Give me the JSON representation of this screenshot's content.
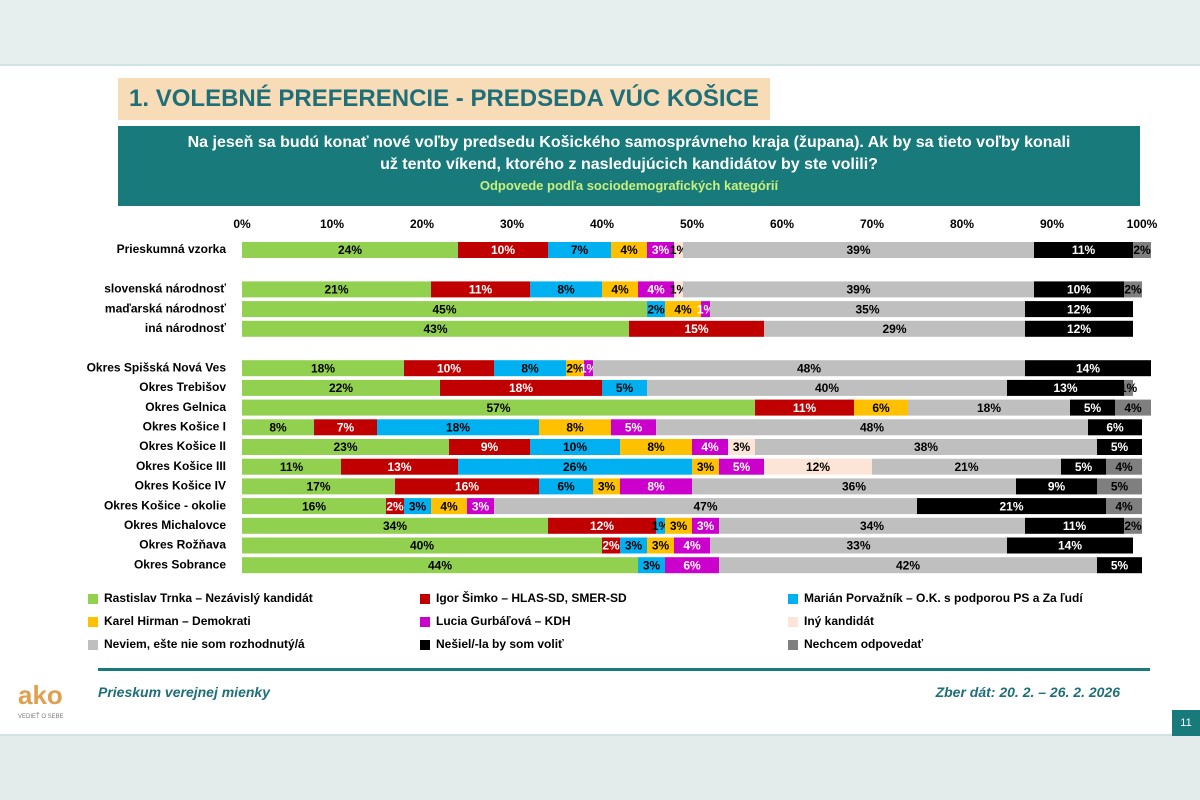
{
  "header": {
    "title": "1. VOLEBNÉ PREFERENCIE - PREDSEDA VÚC KOŠICE",
    "question": "Na jeseň sa budú konať nové voľby predsedu Košického samosprávneho kraja (župana). Ak by sa tieto voľby konali už tento víkend, ktorého z nasledujúcich kandidátov by ste volili?",
    "subtitle": "Odpovede podľa sociodemografických kategórií"
  },
  "footer": {
    "left": "Prieskum verejnej mienky",
    "right": "Zber dát: 20. 2. – 26. 2. 2026",
    "page": "11",
    "logo": "ako",
    "logo_tagline": "VEDIEŤ O SEBE"
  },
  "chart_data": {
    "type": "stacked-bar-horizontal",
    "categories": [
      "Prieskumná vzorka",
      null,
      "slovenská národnosť",
      "maďarská národnosť",
      "iná národnosť",
      null,
      "Okres Spišská Nová Ves",
      "Okres Trebišov",
      "Okres Gelnica",
      "Okres Košice I",
      "Okres Košice II",
      "Okres Košice III",
      "Okres Košice IV",
      "Okres Košice - okolie",
      "Okres Michalovce",
      "Okres Rožňava",
      "Okres Sobrance"
    ],
    "xlim": [
      0,
      100
    ],
    "xticks": [
      {
        "value": 0,
        "label": "0%"
      },
      {
        "value": 10,
        "label": "10%"
      },
      {
        "value": 20,
        "label": "20%"
      },
      {
        "value": 30,
        "label": "30%"
      },
      {
        "value": 40,
        "label": "40%"
      },
      {
        "value": 50,
        "label": "50%"
      },
      {
        "value": 60,
        "label": "60%"
      },
      {
        "value": 70,
        "label": "70%"
      },
      {
        "value": 80,
        "label": "80%"
      },
      {
        "value": 90,
        "label": "90%"
      },
      {
        "value": 100,
        "label": "100%"
      }
    ],
    "series": [
      {
        "name": "Rastislav Trnka – Nezávislý kandidát",
        "color": "#92d050",
        "values": [
          24,
          null,
          21,
          45,
          43,
          null,
          18,
          22,
          57,
          8,
          23,
          11,
          17,
          16,
          34,
          40,
          44
        ],
        "value_labels": [
          "24%",
          null,
          "21%",
          "45%",
          "43%",
          null,
          "18%",
          "22%",
          "57%",
          "8%",
          "23%",
          "11%",
          "17%",
          "16%",
          "34%",
          "40%",
          "44%"
        ]
      },
      {
        "name": "Igor Šimko – HLAS-SD, SMER-SD",
        "color": "#c00000",
        "values": [
          10,
          null,
          11,
          null,
          15,
          null,
          10,
          18,
          11,
          7,
          9,
          13,
          16,
          2,
          12,
          2,
          null
        ],
        "value_labels": [
          "10%",
          null,
          "11%",
          null,
          "15%",
          null,
          "10%",
          "18%",
          "11%",
          "7%",
          "9%",
          "13%",
          "16%",
          "2%",
          "12%",
          "2%",
          null
        ]
      },
      {
        "name": "Marián Porvažník – O.K. s podporou PS a Za ľudí",
        "color": "#00b0f0",
        "values": [
          7,
          null,
          8,
          2,
          null,
          null,
          8,
          5,
          null,
          18,
          10,
          26,
          6,
          3,
          1,
          3,
          3
        ],
        "value_labels": [
          "7%",
          null,
          "8%",
          "2%",
          null,
          null,
          "8%",
          "5%",
          null,
          "18%",
          "10%",
          "26%",
          "6%",
          "3%",
          "1%",
          "3%",
          "3%"
        ]
      },
      {
        "name": "Karel Hirman – Demokrati",
        "color": "#ffc000",
        "values": [
          4,
          null,
          4,
          4,
          null,
          null,
          2,
          null,
          6,
          8,
          8,
          3,
          3,
          4,
          3,
          3,
          null
        ],
        "value_labels": [
          "4%",
          null,
          "4%",
          "4%",
          null,
          null,
          "2%",
          null,
          "6%",
          "8%",
          "8%",
          "3%",
          "3%",
          "4%",
          "3%",
          "3%",
          null
        ]
      },
      {
        "name": "Lucia Gurbáľová – KDH",
        "color": "#cc00cc",
        "values": [
          3,
          null,
          4,
          1,
          null,
          null,
          1,
          null,
          null,
          5,
          4,
          5,
          8,
          3,
          3,
          4,
          6
        ],
        "value_labels": [
          "3%",
          null,
          "4%",
          "1%",
          null,
          null,
          "1%",
          null,
          null,
          "5%",
          "4%",
          "5%",
          "8%",
          "3%",
          "3%",
          "4%",
          "6%"
        ]
      },
      {
        "name": "Iný kandidát",
        "color": "#fce4d6",
        "values": [
          1,
          null,
          1,
          null,
          null,
          null,
          null,
          null,
          null,
          null,
          3,
          12,
          null,
          null,
          null,
          null,
          null
        ],
        "value_labels": [
          "1%",
          null,
          "1%",
          null,
          null,
          null,
          null,
          null,
          null,
          null,
          "3%",
          "12%",
          null,
          null,
          null,
          null,
          null
        ]
      },
      {
        "name": "Neviem, ešte nie som rozhodnutý/á",
        "color": "#bfbfbf",
        "values": [
          39,
          null,
          39,
          35,
          29,
          null,
          48,
          40,
          18,
          48,
          38,
          21,
          36,
          47,
          34,
          33,
          42
        ],
        "value_labels": [
          "39%",
          null,
          "39%",
          "35%",
          "29%",
          null,
          "48%",
          "40%",
          "18%",
          "48%",
          "38%",
          "21%",
          "36%",
          "47%",
          "34%",
          "33%",
          "42%"
        ]
      },
      {
        "name": "Nešiel/-la by som voliť",
        "color": "#000000",
        "values": [
          11,
          null,
          10,
          12,
          12,
          null,
          14,
          13,
          5,
          6,
          5,
          5,
          9,
          21,
          11,
          14,
          5
        ],
        "value_labels": [
          "11%",
          null,
          "10%",
          "12%",
          "12%",
          null,
          "14%",
          "13%",
          "5%",
          "6%",
          "5%",
          "5%",
          "9%",
          "21%",
          "11%",
          "14%",
          "5%"
        ]
      },
      {
        "name": "Nechcem odpovedať",
        "color": "#7f7f7f",
        "values": [
          2,
          null,
          2,
          null,
          null,
          null,
          null,
          1,
          4,
          null,
          null,
          4,
          5,
          4,
          2,
          null,
          null
        ],
        "value_labels": [
          "2%",
          null,
          "2%",
          null,
          null,
          null,
          null,
          "1%",
          "4%",
          null,
          null,
          "4%",
          "5%",
          "4%",
          "2%",
          null,
          null
        ]
      }
    ]
  }
}
